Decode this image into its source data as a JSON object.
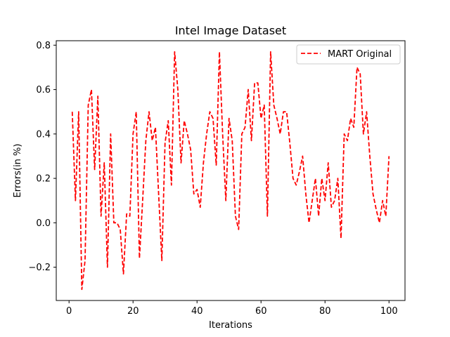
{
  "chart_data": {
    "type": "line",
    "title": "Intel Image Dataset",
    "xlabel": "Iterations",
    "ylabel": "Errors(in %)",
    "xlim": [
      -4,
      105
    ],
    "ylim": [
      -0.35,
      0.82
    ],
    "xticks": [
      0,
      20,
      40,
      60,
      80,
      100
    ],
    "yticks": [
      -0.2,
      0.0,
      0.2,
      0.4,
      0.6,
      0.8
    ],
    "xtick_labels": [
      "0",
      "20",
      "40",
      "60",
      "80",
      "100"
    ],
    "ytick_labels": [
      "−0.2",
      "0.0",
      "0.2",
      "0.4",
      "0.6",
      "0.8"
    ],
    "grid": false,
    "legend_position": "top-right",
    "series": [
      {
        "name": "MART Original",
        "color": "#ff0000",
        "style": "dashed",
        "x": [
          1,
          2,
          3,
          4,
          5,
          6,
          7,
          8,
          9,
          10,
          11,
          12,
          13,
          14,
          15,
          16,
          17,
          18,
          19,
          20,
          21,
          22,
          23,
          24,
          25,
          26,
          27,
          28,
          29,
          30,
          31,
          32,
          33,
          34,
          35,
          36,
          37,
          38,
          39,
          40,
          41,
          42,
          43,
          44,
          45,
          46,
          47,
          48,
          49,
          50,
          51,
          52,
          53,
          54,
          55,
          56,
          57,
          58,
          59,
          60,
          61,
          62,
          63,
          64,
          65,
          66,
          67,
          68,
          69,
          70,
          71,
          72,
          73,
          74,
          75,
          76,
          77,
          78,
          79,
          80,
          81,
          82,
          83,
          84,
          85,
          86,
          87,
          88,
          89,
          90,
          91,
          92,
          93,
          94,
          95,
          96,
          97,
          98,
          99,
          100
        ],
        "values": [
          0.5,
          0.1,
          0.5,
          -0.3,
          -0.17,
          0.53,
          0.6,
          0.24,
          0.57,
          0.03,
          0.27,
          -0.2,
          0.4,
          0.0,
          0.0,
          -0.03,
          -0.23,
          0.04,
          0.03,
          0.4,
          0.5,
          -0.16,
          0.1,
          0.37,
          0.5,
          0.37,
          0.43,
          0.13,
          -0.17,
          0.36,
          0.46,
          0.17,
          0.77,
          0.6,
          0.27,
          0.46,
          0.4,
          0.33,
          0.13,
          0.15,
          0.07,
          0.27,
          0.4,
          0.5,
          0.47,
          0.26,
          0.77,
          0.4,
          0.1,
          0.47,
          0.37,
          0.03,
          -0.03,
          0.4,
          0.43,
          0.6,
          0.37,
          0.63,
          0.63,
          0.47,
          0.53,
          0.03,
          0.77,
          0.53,
          0.47,
          0.4,
          0.5,
          0.5,
          0.36,
          0.2,
          0.17,
          0.23,
          0.3,
          0.13,
          0.0,
          0.1,
          0.2,
          0.03,
          0.2,
          0.1,
          0.27,
          0.07,
          0.1,
          0.2,
          -0.07,
          0.4,
          0.37,
          0.47,
          0.43,
          0.7,
          0.67,
          0.4,
          0.5,
          0.3,
          0.13,
          0.06,
          0.0,
          0.1,
          0.03,
          0.3
        ]
      }
    ]
  }
}
